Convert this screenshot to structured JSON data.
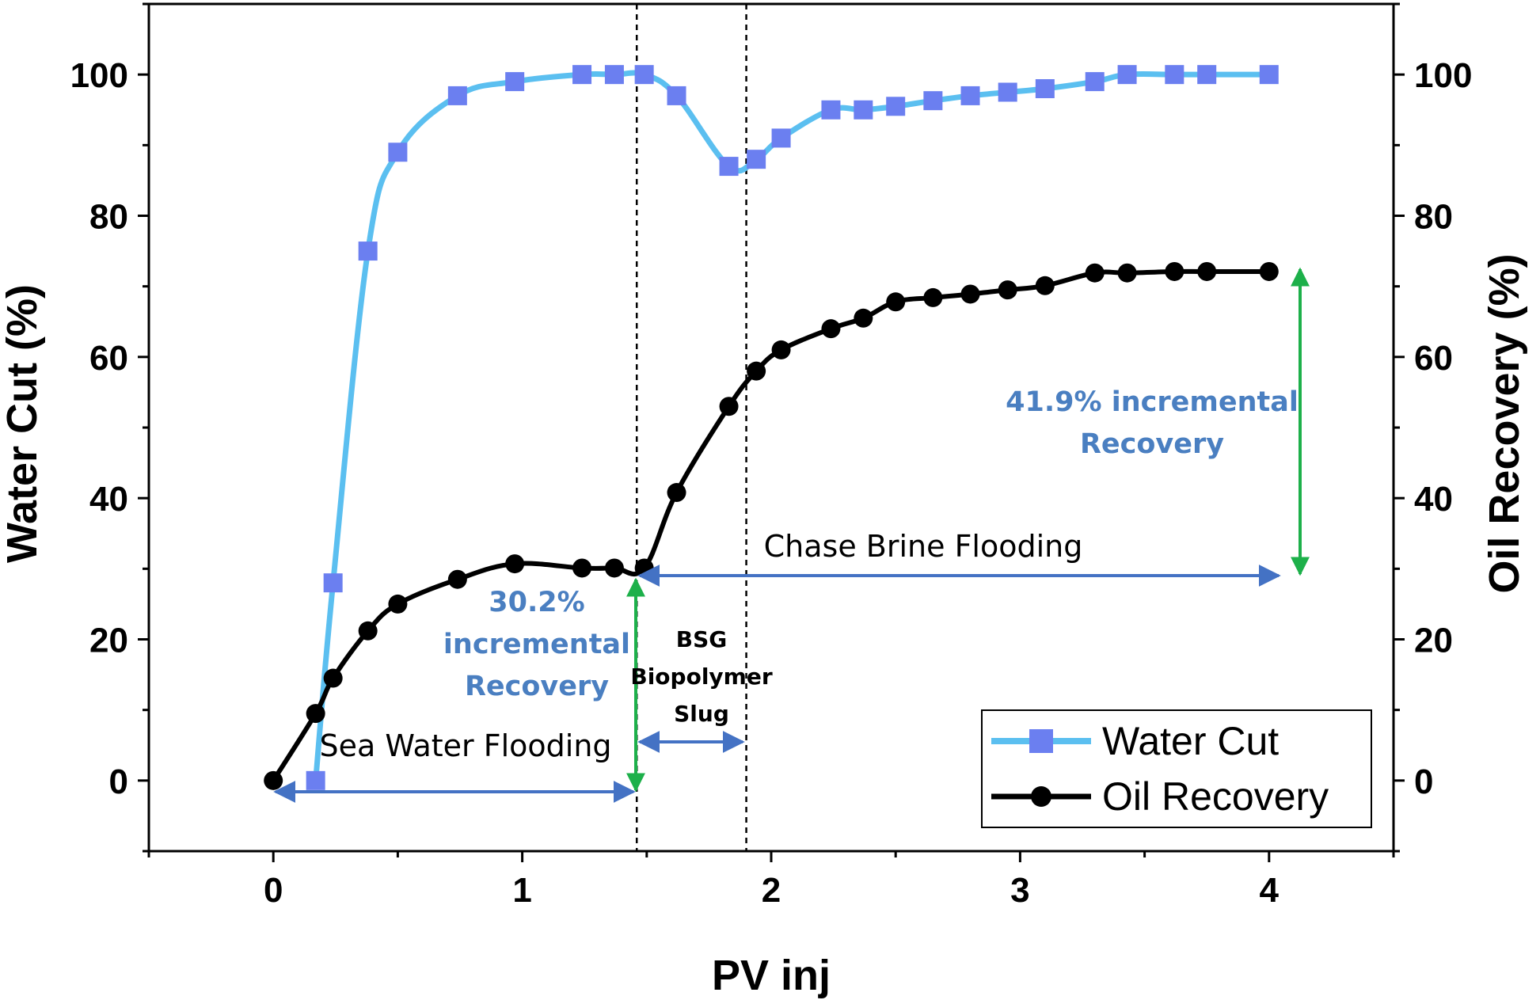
{
  "chart_data": {
    "type": "line",
    "xlabel": "PV inj",
    "ylabel_left": "Water Cut (%)",
    "ylabel_right": "Oil Recovery (%)",
    "xlim": [
      -0.5,
      4.5
    ],
    "ylim": [
      -10,
      110
    ],
    "x_ticks": [
      "0",
      "1",
      "2",
      "3",
      "4"
    ],
    "y_ticks": [
      "0",
      "20",
      "40",
      "60",
      "80",
      "100"
    ],
    "series": [
      {
        "name": "Water Cut",
        "color": "#5bbff0",
        "marker_color": "#6b7ff0",
        "marker": "square",
        "x": [
          0.17,
          0.24,
          0.38,
          0.5,
          0.74,
          0.97,
          1.24,
          1.37,
          1.49,
          1.62,
          1.83,
          1.94,
          2.04,
          2.24,
          2.37,
          2.5,
          2.65,
          2.8,
          2.95,
          3.1,
          3.3,
          3.43,
          3.62,
          3.75,
          4.0
        ],
        "values": [
          0,
          28,
          75,
          89,
          97,
          99,
          100,
          100,
          100,
          97,
          87,
          88,
          91,
          95,
          95,
          95.5,
          96.3,
          97,
          97.5,
          98,
          99,
          100,
          100,
          100,
          100
        ]
      },
      {
        "name": "Oil Recovery",
        "color": "#000000",
        "marker_color": "#000000",
        "marker": "circle",
        "x": [
          0,
          0.17,
          0.24,
          0.38,
          0.5,
          0.74,
          0.97,
          1.24,
          1.37,
          1.49,
          1.62,
          1.83,
          1.94,
          2.04,
          2.24,
          2.37,
          2.5,
          2.65,
          2.8,
          2.95,
          3.1,
          3.3,
          3.43,
          3.62,
          3.75,
          4.0
        ],
        "values": [
          0,
          9.5,
          14.5,
          21.2,
          25,
          28.5,
          30.7,
          30.1,
          30.1,
          30.1,
          40.8,
          53,
          58,
          61,
          64,
          65.5,
          67.8,
          68.4,
          68.9,
          69.5,
          70.1,
          71.9,
          71.9,
          72.1,
          72.1,
          72.1
        ]
      }
    ],
    "vlines": [
      1.46,
      1.9
    ],
    "annotations": {
      "sea_water": "Sea Water Flooding",
      "chase_brine": "Chase Brine Flooding",
      "bsg_line1": "BSG",
      "bsg_line2": "Biopolymer",
      "bsg_line3": "Slug",
      "inc1_line1": "30.2%",
      "inc1_line2": "incremental",
      "inc1_line3": "Recovery",
      "inc2_line1": "41.9% incremental",
      "inc2_line2": "Recovery"
    },
    "legend": [
      "Water Cut",
      "Oil Recovery"
    ],
    "legend_position": "bottom-right"
  }
}
